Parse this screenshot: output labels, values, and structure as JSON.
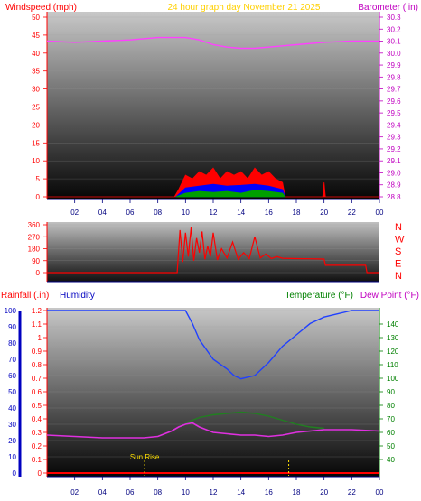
{
  "header": {
    "left_label": "Windspeed (mph)",
    "center_label": "24 hour graph day   November 21 2025",
    "right_label": "Barometer (.in)"
  },
  "colors": {
    "wind_axis": "#ff0000",
    "baro_axis": "#c000c0",
    "title": "#ffd000",
    "rain_axis": "#ff0000",
    "humidity_axis": "#0000c0",
    "temp_axis": "#008000",
    "dew_axis": "#c000c0",
    "wind_gust": "#ff0000",
    "wind_avg": "#0000ff",
    "wind_min": "#00a000",
    "baro_line": "#ff40ff",
    "humidity_line": "#2040ff",
    "temp_line": "#208020",
    "dew_line": "#e030e0",
    "sunrise": "#ffe000"
  },
  "x_ticks": [
    "02",
    "04",
    "06",
    "08",
    "10",
    "12",
    "14",
    "16",
    "18",
    "20",
    "22",
    "00"
  ],
  "direction_labels": [
    "N",
    "W",
    "S",
    "E",
    "N"
  ],
  "bottom_header": {
    "rain_label": "Rainfall (.in)",
    "humidity_label": "Humidity",
    "temp_label": "Temperature (°F)",
    "dew_label": "Dew Point (°F)"
  },
  "annotations": {
    "sunrise": "Sun Rise"
  },
  "chart_data": [
    {
      "type": "line",
      "panel": "wind_barometer",
      "x_range": [
        0,
        24
      ],
      "y_left": {
        "label": "Windspeed (mph)",
        "range": [
          0,
          50
        ],
        "ticks": [
          0,
          5,
          10,
          15,
          20,
          25,
          30,
          35,
          40,
          45,
          50
        ]
      },
      "y_right": {
        "label": "Barometer (.in)",
        "range": [
          28.8,
          30.3
        ],
        "ticks": [
          28.8,
          28.9,
          29,
          29.1,
          29.2,
          29.3,
          29.4,
          29.5,
          29.6,
          29.7,
          29.8,
          29.9,
          30,
          30.1,
          30.2,
          30.3
        ]
      },
      "series": [
        {
          "name": "Barometer",
          "axis": "right",
          "x": [
            0,
            2,
            4,
            6,
            8,
            10,
            11,
            12,
            13,
            14,
            15,
            16,
            17,
            18,
            20,
            22,
            24
          ],
          "y": [
            30.1,
            30.09,
            30.1,
            30.11,
            30.13,
            30.13,
            30.11,
            30.07,
            30.05,
            30.04,
            30.04,
            30.05,
            30.06,
            30.07,
            30.09,
            30.1,
            30.1
          ]
        },
        {
          "name": "Gust",
          "axis": "left",
          "x": [
            0,
            9.2,
            9.5,
            10,
            10.5,
            11,
            11.5,
            12,
            12.5,
            13,
            13.5,
            14,
            14.5,
            15,
            15.5,
            16,
            16.5,
            17,
            17.2,
            19.9,
            20,
            20.1,
            24
          ],
          "y": [
            0,
            0,
            2,
            6,
            5,
            7,
            6,
            8,
            5,
            7,
            6,
            7,
            5,
            8,
            6,
            7,
            5,
            4,
            0,
            0,
            4,
            0,
            0
          ]
        },
        {
          "name": "Average",
          "axis": "left",
          "x": [
            9.3,
            10,
            11,
            12,
            13,
            14,
            15,
            16,
            17,
            17.2
          ],
          "y": [
            0,
            2.5,
            3,
            3.5,
            3,
            3.2,
            3.5,
            3,
            2,
            0
          ]
        },
        {
          "name": "Minimum",
          "axis": "left",
          "x": [
            9.3,
            10,
            11,
            12,
            13,
            14,
            15,
            16,
            17,
            17.2
          ],
          "y": [
            0,
            1,
            1.5,
            1.2,
            1.5,
            1,
            1.8,
            1.5,
            1,
            0
          ]
        }
      ]
    },
    {
      "type": "line",
      "panel": "wind_direction",
      "x_range": [
        0,
        24
      ],
      "y_range": [
        0,
        360
      ],
      "y_ticks": [
        0,
        90,
        180,
        270,
        360
      ],
      "series": [
        {
          "name": "Direction",
          "x": [
            0,
            9.4,
            9.6,
            9.8,
            10,
            10.2,
            10.4,
            10.6,
            10.8,
            11,
            11.2,
            11.4,
            11.6,
            11.8,
            12,
            12.3,
            12.6,
            13,
            13.4,
            13.8,
            14.2,
            14.6,
            15,
            15.4,
            15.8,
            16.2,
            16.6,
            17,
            18,
            19,
            20,
            20.1,
            23,
            23.1,
            24
          ],
          "y": [
            0,
            0,
            320,
            80,
            300,
            120,
            340,
            90,
            260,
            150,
            310,
            100,
            200,
            120,
            300,
            95,
            180,
            110,
            230,
            100,
            150,
            105,
            270,
            110,
            140,
            105,
            120,
            108,
            105,
            104,
            102,
            55,
            55,
            0,
            0
          ]
        }
      ]
    },
    {
      "type": "line",
      "panel": "rain_humidity_temperature",
      "x_range": [
        0,
        24
      ],
      "y_left": {
        "label": "Rainfall (.in)",
        "range": [
          0,
          1.2
        ],
        "ticks": [
          0,
          0.1,
          0.2,
          0.3,
          0.4,
          0.5,
          0.6,
          0.7,
          0.8,
          0.9,
          1,
          1.1,
          1.2
        ]
      },
      "y_humidity": {
        "label": "Humidity",
        "range": [
          0,
          100
        ],
        "ticks": [
          0,
          10,
          20,
          30,
          40,
          50,
          60,
          70,
          80,
          90,
          100
        ]
      },
      "y_right": {
        "label": "Temperature (°F)",
        "range": [
          30,
          150
        ],
        "ticks": [
          40,
          50,
          60,
          70,
          80,
          90,
          100,
          110,
          120,
          130,
          140
        ]
      },
      "series": [
        {
          "name": "Humidity",
          "axis": "humidity",
          "x": [
            0,
            8,
            10,
            10.5,
            11,
            12,
            13,
            13.5,
            14,
            15,
            16,
            17,
            18,
            19,
            20,
            21,
            22,
            24
          ],
          "y": [
            100,
            100,
            100,
            92,
            82,
            70,
            64,
            60,
            58,
            60,
            68,
            78,
            85,
            92,
            96,
            98,
            100,
            100
          ]
        },
        {
          "name": "Temperature",
          "axis": "right",
          "x": [
            10,
            11,
            12,
            13,
            14,
            15,
            16,
            17,
            18,
            19,
            20
          ],
          "y": [
            67,
            71,
            73,
            74,
            75,
            74,
            72,
            69,
            66,
            64,
            63
          ]
        },
        {
          "name": "Dew Point",
          "axis": "right",
          "x": [
            0,
            2,
            4,
            6,
            7,
            8,
            9,
            9.5,
            10,
            10.5,
            11,
            12,
            13,
            14,
            15,
            16,
            17,
            18,
            20,
            22,
            24
          ],
          "y": [
            58,
            57,
            56,
            56,
            56,
            57,
            61,
            64,
            66,
            67,
            64,
            60,
            59,
            58,
            58,
            57,
            58,
            60,
            62,
            62,
            61
          ]
        },
        {
          "name": "Rainfall",
          "axis": "left",
          "x": [
            0,
            24
          ],
          "y": [
            0,
            0
          ]
        }
      ],
      "annotations": [
        {
          "text": "Sun Rise",
          "x": 7.05
        },
        {
          "text": "",
          "x": 17.45
        }
      ]
    }
  ]
}
